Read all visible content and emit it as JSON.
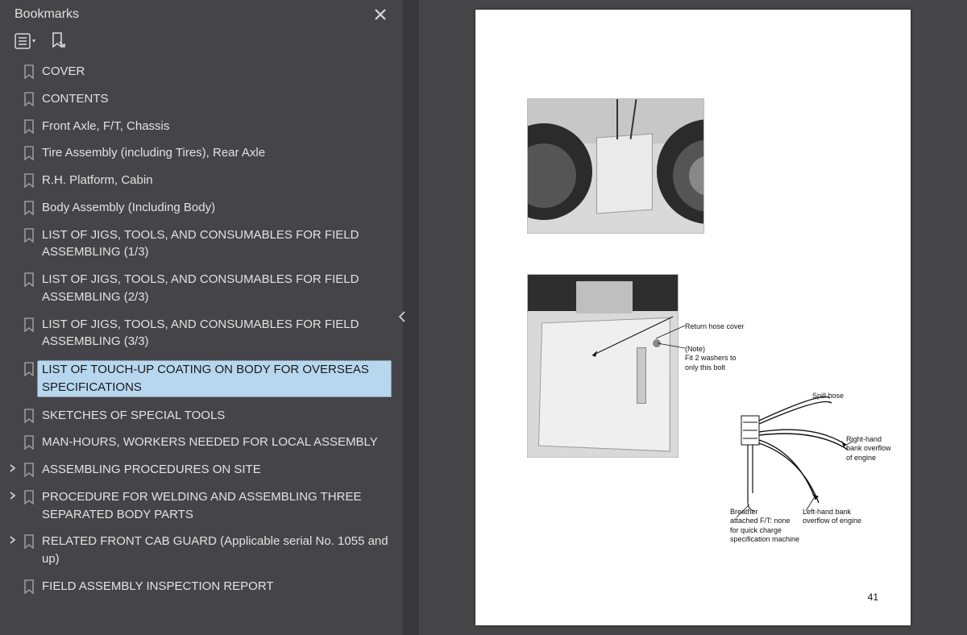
{
  "sidebar": {
    "title": "Bookmarks",
    "items": [
      {
        "label": "COVER",
        "expandable": false,
        "selected": false
      },
      {
        "label": "CONTENTS",
        "expandable": false,
        "selected": false
      },
      {
        "label": "Front Axle, F/T, Chassis",
        "expandable": false,
        "selected": false
      },
      {
        "label": "Tire Assembly (including Tires), Rear Axle",
        "expandable": false,
        "selected": false
      },
      {
        "label": "R.H. Platform, Cabin",
        "expandable": false,
        "selected": false
      },
      {
        "label": "Body Assembly (Including Body)",
        "expandable": false,
        "selected": false
      },
      {
        "label": "LIST OF JIGS, TOOLS, AND CONSUMABLES FOR FIELD ASSEMBLING (1/3)",
        "expandable": false,
        "selected": false
      },
      {
        "label": "LIST OF JIGS, TOOLS, AND CONSUMABLES FOR FIELD ASSEMBLING (2/3)",
        "expandable": false,
        "selected": false
      },
      {
        "label": "LIST OF JIGS, TOOLS, AND CONSUMABLES FOR FIELD ASSEMBLING (3/3)",
        "expandable": false,
        "selected": false
      },
      {
        "label": "LIST OF TOUCH-UP COATING ON BODY FOR OVERSEAS SPECIFICATIONS",
        "expandable": false,
        "selected": true
      },
      {
        "label": "SKETCHES OF SPECIAL TOOLS",
        "expandable": false,
        "selected": false
      },
      {
        "label": "MAN-HOURS, WORKERS NEEDED FOR LOCAL ASSEMBLY",
        "expandable": false,
        "selected": false
      },
      {
        "label": "ASSEMBLING PROCEDURES ON SITE",
        "expandable": true,
        "selected": false
      },
      {
        "label": "PROCEDURE FOR WELDING AND ASSEMBLING THREE SEPARATED BODY PARTS",
        "expandable": true,
        "selected": false
      },
      {
        "label": "RELATED FRONT CAB GUARD (Applicable serial No. 1055 and up)",
        "expandable": true,
        "selected": false
      },
      {
        "label": "FIELD ASSEMBLY INSPECTION REPORT",
        "expandable": false,
        "selected": false
      }
    ]
  },
  "page": {
    "number": "41",
    "annotations": {
      "return_hose": "Return hose cover",
      "note": "(Note)\nFit 2 washers to\nonly this bolt",
      "spill_hose": "Spill hose",
      "right_bank": "Right-hand\nbank overflow\nof engine",
      "left_bank": "Left-hand bank\noverflow of engine",
      "breather": "Breather\nattached F/T: none\nfor quick charge\nspecification machine"
    }
  },
  "colors": {
    "sidebar_bg": "#454549",
    "content_bg": "#464649",
    "selection_bg": "#b7d7ef",
    "text_light": "#e2e2e2",
    "page_bg": "#ffffff"
  }
}
